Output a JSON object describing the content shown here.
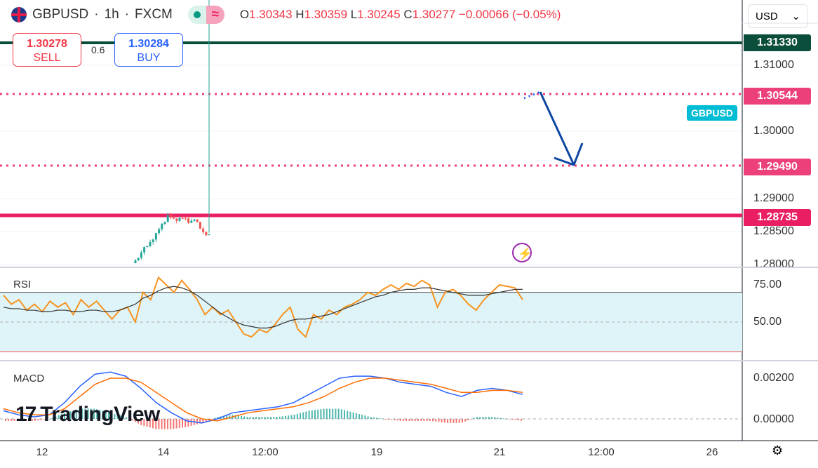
{
  "header": {
    "symbol": "GBPUSD",
    "interval": "1h",
    "exchange": "FXCM",
    "sep": "·",
    "open_label": "O",
    "open": "1.30343",
    "high_label": "H",
    "high": "1.30359",
    "low_label": "L",
    "low": "1.30245",
    "close_label": "C",
    "close": "1.30277",
    "change": "−0.00066 (−0.05%)"
  },
  "trade": {
    "sell_price": "1.30278",
    "sell_label": "SELL",
    "spread": "0.6",
    "buy_price": "1.30284",
    "buy_label": "BUY"
  },
  "currency": "USD",
  "price_axis": [
    "1.31000",
    "1.30000",
    "1.29000",
    "1.28500",
    "1.28000"
  ],
  "levels": [
    {
      "value": "1.31330",
      "color": "#0b4d3b"
    },
    {
      "value": "1.30544",
      "color": "#ec407a"
    },
    {
      "value": "1.29490",
      "color": "#ec407a"
    },
    {
      "value": "1.28735",
      "color": "#e91e63"
    }
  ],
  "symbol_tag": "GBPUSD",
  "rsi": {
    "label": "RSI",
    "axis": [
      "75.00",
      "50.00"
    ],
    "values": [
      68,
      62,
      65,
      58,
      62,
      57,
      64,
      60,
      63,
      55,
      65,
      60,
      64,
      58,
      52,
      58,
      60,
      50,
      70,
      65,
      80,
      75,
      70,
      78,
      72,
      65,
      55,
      60,
      55,
      58,
      50,
      42,
      40,
      45,
      43,
      48,
      55,
      60,
      45,
      40,
      55,
      52,
      58,
      55,
      60,
      62,
      65,
      70,
      68,
      72,
      75,
      72,
      76,
      74,
      78,
      75,
      60,
      70,
      72,
      68,
      62,
      58,
      65,
      70,
      75,
      74,
      73,
      65
    ],
    "ma": [
      60,
      59,
      59,
      58,
      58,
      57,
      57,
      58,
      58,
      57,
      57,
      58,
      58,
      57,
      57,
      58,
      60,
      62,
      66,
      68,
      71,
      73,
      74,
      73,
      71,
      68,
      64,
      60,
      56,
      53,
      50,
      48,
      47,
      46,
      46,
      47,
      49,
      51,
      52,
      52,
      53,
      54,
      55,
      57,
      59,
      61,
      63,
      65,
      67,
      68,
      70,
      71,
      72,
      72,
      73,
      73,
      72,
      71,
      70,
      69,
      68,
      68,
      68,
      69,
      70,
      71,
      72,
      72
    ]
  },
  "macd": {
    "label": "MACD",
    "axis": [
      "0.00200",
      "0.00000"
    ],
    "macd": [
      0.0004,
      0.0002,
      0.0001,
      0.0002,
      0.0008,
      0.0016,
      0.0022,
      0.0023,
      0.0021,
      0.0015,
      0.0008,
      0.0003,
      -0.0001,
      -0.0002,
      0.0,
      0.0003,
      0.0004,
      0.0005,
      0.0006,
      0.0008,
      0.0012,
      0.0016,
      0.002,
      0.0021,
      0.0021,
      0.002,
      0.0018,
      0.0017,
      0.0016,
      0.0013,
      0.0011,
      0.0014,
      0.0015,
      0.0014,
      0.0012
    ],
    "signal": [
      0.0005,
      0.0003,
      0.0002,
      0.0002,
      0.0005,
      0.0011,
      0.0017,
      0.002,
      0.002,
      0.0018,
      0.0013,
      0.0008,
      0.0003,
      0.0,
      -0.0001,
      0.0001,
      0.0003,
      0.0004,
      0.0005,
      0.0006,
      0.0008,
      0.0011,
      0.0015,
      0.0018,
      0.002,
      0.002,
      0.0019,
      0.0018,
      0.0017,
      0.0015,
      0.0013,
      0.0013,
      0.0014,
      0.0014,
      0.0013
    ]
  },
  "time_axis": [
    "12",
    "14",
    "12:00",
    "19",
    "21",
    "12:00",
    "26"
  ],
  "price_path": [
    [
      190,
      1.28
    ],
    [
      215,
      1.2835
    ],
    [
      240,
      1.287
    ],
    [
      280,
      1.2862
    ],
    [
      290,
      1.2845
    ],
    [
      320,
      1.2855
    ],
    [
      340,
      1.283
    ],
    [
      370,
      1.2835
    ],
    [
      395,
      1.2862
    ],
    [
      408,
      1.283
    ],
    [
      415,
      1.2866
    ],
    [
      440,
      1.2855
    ],
    [
      470,
      1.2876
    ],
    [
      500,
      1.2905
    ],
    [
      515,
      1.2898
    ],
    [
      525,
      1.2945
    ],
    [
      560,
      1.2955
    ],
    [
      590,
      1.2975
    ],
    [
      600,
      1.2955
    ],
    [
      605,
      1.299
    ],
    [
      620,
      1.2996
    ],
    [
      660,
      1.298
    ],
    [
      680,
      1.3002
    ],
    [
      700,
      1.303
    ],
    [
      720,
      1.3025
    ],
    [
      745,
      1.3028
    ]
  ],
  "brand": "TradingView",
  "colors": {
    "up": "#26a69a",
    "down": "#ef5350",
    "rsi": "#f7931e",
    "macd": "#2962ff",
    "signal": "#ff6d00"
  }
}
